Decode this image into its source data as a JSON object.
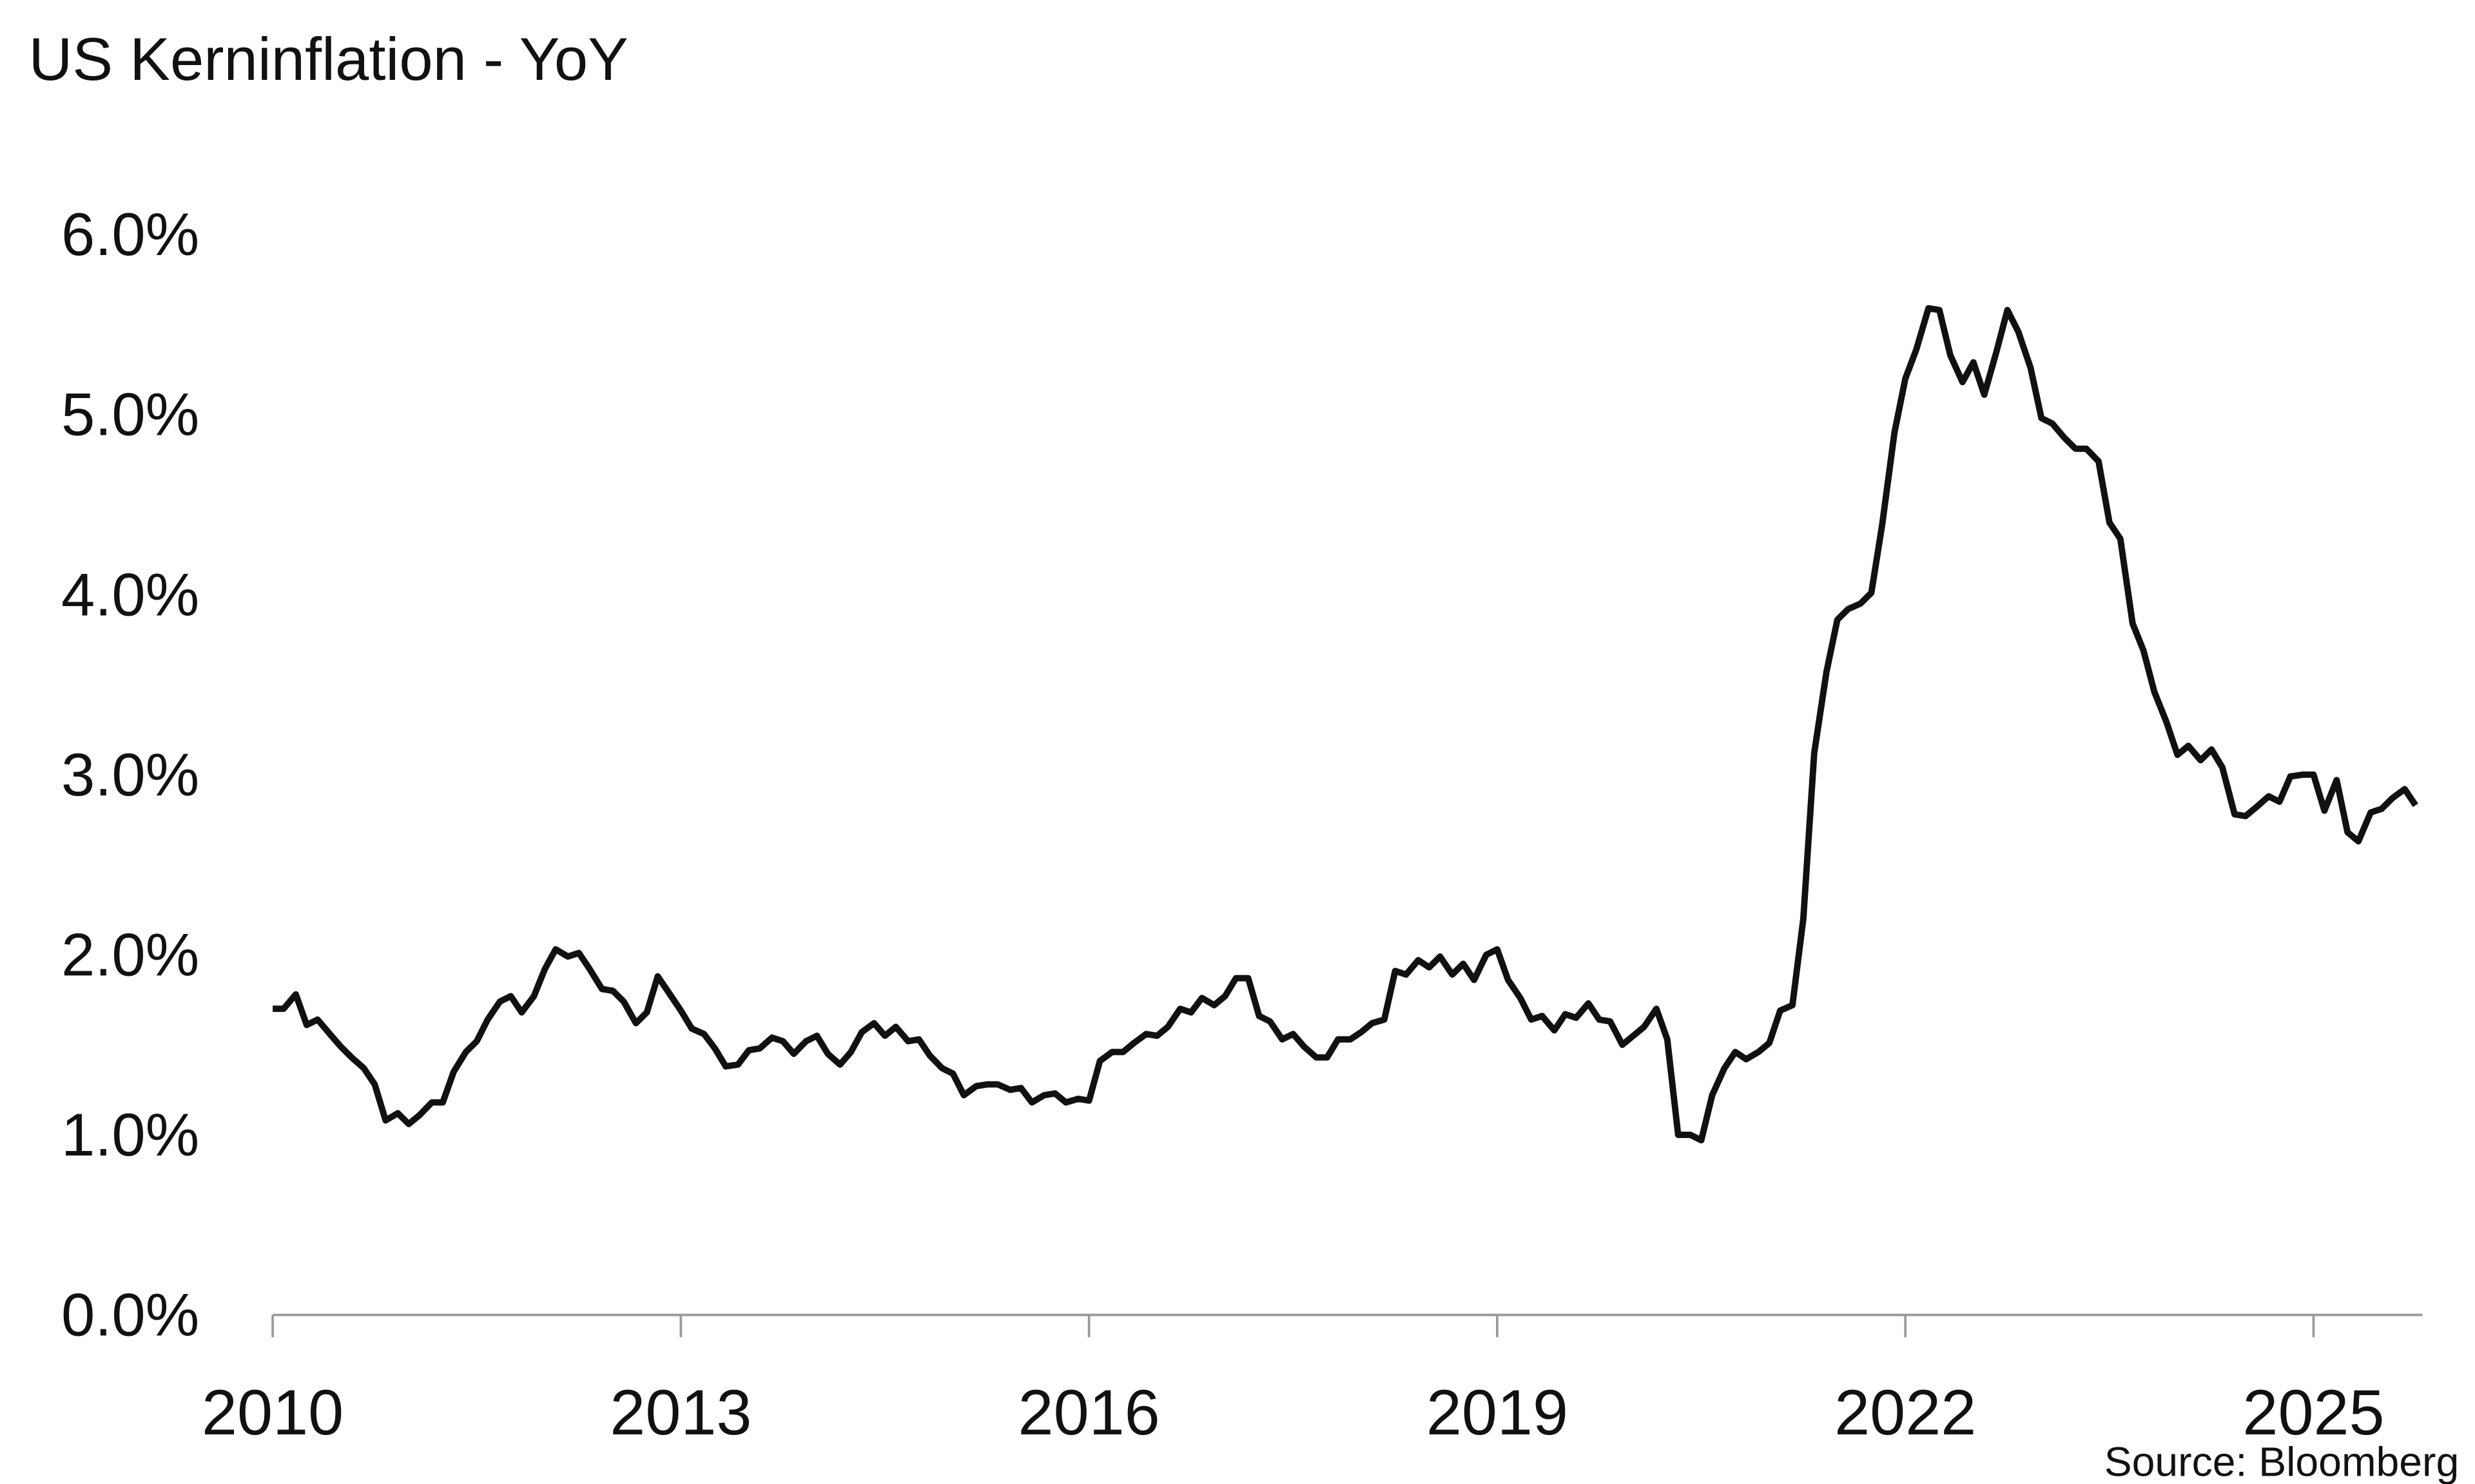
{
  "chart_data": {
    "type": "line",
    "title": "US Kerninflation - YoY",
    "source": "Source: Bloomberg",
    "x": [
      2010,
      2010.08,
      2010.17,
      2010.25,
      2010.33,
      2010.42,
      2010.5,
      2010.58,
      2010.67,
      2010.75,
      2010.83,
      2010.92,
      2011,
      2011.08,
      2011.17,
      2011.25,
      2011.33,
      2011.42,
      2011.5,
      2011.58,
      2011.67,
      2011.75,
      2011.83,
      2011.92,
      2012,
      2012.08,
      2012.17,
      2012.25,
      2012.33,
      2012.42,
      2012.5,
      2012.58,
      2012.67,
      2012.75,
      2012.83,
      2012.92,
      2013,
      2013.08,
      2013.17,
      2013.25,
      2013.33,
      2013.42,
      2013.5,
      2013.58,
      2013.67,
      2013.75,
      2013.83,
      2013.92,
      2014,
      2014.08,
      2014.17,
      2014.25,
      2014.33,
      2014.42,
      2014.5,
      2014.58,
      2014.67,
      2014.75,
      2014.83,
      2014.92,
      2015,
      2015.08,
      2015.17,
      2015.25,
      2015.33,
      2015.42,
      2015.5,
      2015.58,
      2015.67,
      2015.75,
      2015.83,
      2015.92,
      2016,
      2016.08,
      2016.17,
      2016.25,
      2016.33,
      2016.42,
      2016.5,
      2016.58,
      2016.67,
      2016.75,
      2016.83,
      2016.92,
      2017,
      2017.08,
      2017.17,
      2017.25,
      2017.33,
      2017.42,
      2017.5,
      2017.58,
      2017.67,
      2017.75,
      2017.83,
      2017.92,
      2018,
      2018.08,
      2018.17,
      2018.25,
      2018.33,
      2018.42,
      2018.5,
      2018.58,
      2018.67,
      2018.75,
      2018.83,
      2018.92,
      2019,
      2019.08,
      2019.17,
      2019.25,
      2019.33,
      2019.42,
      2019.5,
      2019.58,
      2019.67,
      2019.75,
      2019.83,
      2019.92,
      2020,
      2020.08,
      2020.17,
      2020.25,
      2020.33,
      2020.42,
      2020.5,
      2020.58,
      2020.67,
      2020.75,
      2020.83,
      2020.92,
      2021,
      2021.08,
      2021.17,
      2021.25,
      2021.33,
      2021.42,
      2021.5,
      2021.58,
      2021.67,
      2021.75,
      2021.83,
      2021.92,
      2022,
      2022.08,
      2022.17,
      2022.25,
      2022.33,
      2022.42,
      2022.5,
      2022.58,
      2022.67,
      2022.75,
      2022.83,
      2022.92,
      2023,
      2023.08,
      2023.17,
      2023.25,
      2023.33,
      2023.42,
      2023.5,
      2023.58,
      2023.67,
      2023.75,
      2023.83,
      2023.92,
      2024,
      2024.08,
      2024.17,
      2024.25,
      2024.33,
      2024.42,
      2024.5,
      2024.58,
      2024.67,
      2024.75,
      2024.83,
      2024.92,
      2025,
      2025.08,
      2025.17,
      2025.25,
      2025.33,
      2025.42,
      2025.5,
      2025.58,
      2025.67,
      2025.75
    ],
    "series": [
      {
        "color": "#111111",
        "values": [
          1.7,
          1.7,
          1.78,
          1.61,
          1.64,
          1.56,
          1.49,
          1.43,
          1.37,
          1.28,
          1.08,
          1.12,
          1.06,
          1.11,
          1.18,
          1.18,
          1.35,
          1.46,
          1.52,
          1.64,
          1.74,
          1.77,
          1.68,
          1.77,
          1.92,
          2.03,
          1.99,
          2.01,
          1.92,
          1.81,
          1.8,
          1.74,
          1.62,
          1.68,
          1.88,
          1.78,
          1.69,
          1.59,
          1.56,
          1.48,
          1.38,
          1.39,
          1.47,
          1.48,
          1.54,
          1.52,
          1.45,
          1.52,
          1.55,
          1.45,
          1.39,
          1.46,
          1.57,
          1.62,
          1.55,
          1.6,
          1.52,
          1.53,
          1.44,
          1.37,
          1.34,
          1.22,
          1.27,
          1.28,
          1.28,
          1.25,
          1.26,
          1.18,
          1.22,
          1.23,
          1.18,
          1.2,
          1.19,
          1.41,
          1.46,
          1.46,
          1.51,
          1.56,
          1.55,
          1.6,
          1.7,
          1.68,
          1.76,
          1.72,
          1.77,
          1.87,
          1.87,
          1.66,
          1.63,
          1.53,
          1.56,
          1.49,
          1.43,
          1.43,
          1.53,
          1.53,
          1.57,
          1.62,
          1.64,
          1.91,
          1.89,
          1.97,
          1.93,
          1.99,
          1.89,
          1.95,
          1.86,
          2.0,
          2.03,
          1.86,
          1.76,
          1.64,
          1.66,
          1.58,
          1.67,
          1.65,
          1.73,
          1.64,
          1.63,
          1.5,
          1.55,
          1.6,
          1.7,
          1.53,
          1.0,
          1.0,
          0.97,
          1.22,
          1.37,
          1.46,
          1.42,
          1.46,
          1.51,
          1.69,
          1.72,
          2.2,
          3.12,
          3.57,
          3.86,
          3.92,
          3.95,
          4.01,
          4.39,
          4.9,
          5.2,
          5.36,
          5.59,
          5.58,
          5.33,
          5.18,
          5.29,
          5.11,
          5.35,
          5.58,
          5.46,
          5.26,
          4.98,
          4.95,
          4.87,
          4.81,
          4.81,
          4.74,
          4.4,
          4.31,
          3.84,
          3.69,
          3.46,
          3.29,
          3.11,
          3.16,
          3.08,
          3.14,
          3.04,
          2.78,
          2.77,
          2.82,
          2.88,
          2.85,
          2.99,
          3.0,
          3.0,
          2.8,
          2.97,
          2.68,
          2.63,
          2.79,
          2.81,
          2.87,
          2.92,
          2.83
        ]
      }
    ],
    "xlim": [
      2010,
      2025.8
    ],
    "xticks": [
      2010,
      2013,
      2016,
      2019,
      2022,
      2025
    ],
    "ylim": [
      0,
      6
    ],
    "yticks": [
      {
        "value": 0,
        "label": "0.0%"
      },
      {
        "value": 1,
        "label": "1.0%"
      },
      {
        "value": 2,
        "label": "2.0%"
      },
      {
        "value": 3,
        "label": "3.0%"
      },
      {
        "value": 4,
        "label": "4.0%"
      },
      {
        "value": 5,
        "label": "5.0%"
      },
      {
        "value": 6,
        "label": "6.0%"
      }
    ],
    "grid": false
  }
}
